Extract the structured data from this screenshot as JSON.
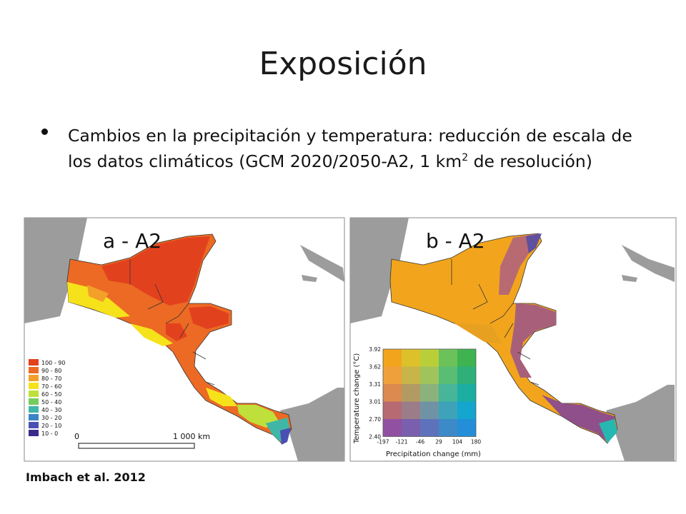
{
  "slide": {
    "title": "Exposición",
    "bullet": {
      "text_before": "Cambios en la precipitación y temperatura: reducción de escala de los datos climáticos (GCM 2020/2050-A2, 1 km",
      "superscript": "2",
      "text_after": " de resolución)"
    },
    "citation": "Imbach et al. 2012"
  },
  "map_a": {
    "label": "a - A2",
    "legend": [
      {
        "label": "100 - 90",
        "color": "#e2411e"
      },
      {
        "label": "90 - 80",
        "color": "#ec6a24"
      },
      {
        "label": "80 - 70",
        "color": "#f3a02a"
      },
      {
        "label": "70 - 60",
        "color": "#f6e21b"
      },
      {
        "label": "60 - 50",
        "color": "#bfe03a"
      },
      {
        "label": "50 - 40",
        "color": "#74cd5d"
      },
      {
        "label": "40 - 30",
        "color": "#3fb6a6"
      },
      {
        "label": "30 - 20",
        "color": "#3a84c6"
      },
      {
        "label": "20 - 10",
        "color": "#4a4fb3"
      },
      {
        "label": "10 - 0",
        "color": "#3b2a8c"
      }
    ],
    "scale_start": "0",
    "scale_end": "1 000 km"
  },
  "map_b": {
    "label": "b - A2",
    "y_axis_label": "Temperature change (°C)",
    "x_axis_label": "Precipitation change (mm)",
    "y_ticks": [
      "3.92",
      "3.62",
      "3.31",
      "3.01",
      "2.70",
      "2.40"
    ],
    "x_ticks": [
      "-197",
      "-121",
      "-46",
      "29",
      "104",
      "180"
    ],
    "grid_colors": [
      [
        "#f2a51c",
        "#dcc12a",
        "#b9cf3a",
        "#6cc25a",
        "#3fb34f"
      ],
      [
        "#f0a03a",
        "#c7b54a",
        "#9fc45c",
        "#59bd74",
        "#2fb07a"
      ],
      [
        "#dc8a4f",
        "#b29b62",
        "#8cb27c",
        "#47b59a",
        "#1daea2"
      ],
      [
        "#b86a72",
        "#9a7d88",
        "#6f93a4",
        "#3ea3b9",
        "#14a6cf"
      ],
      [
        "#9250a2",
        "#7a5fae",
        "#5e72bc",
        "#3d8ac8",
        "#248fd8"
      ]
    ]
  }
}
